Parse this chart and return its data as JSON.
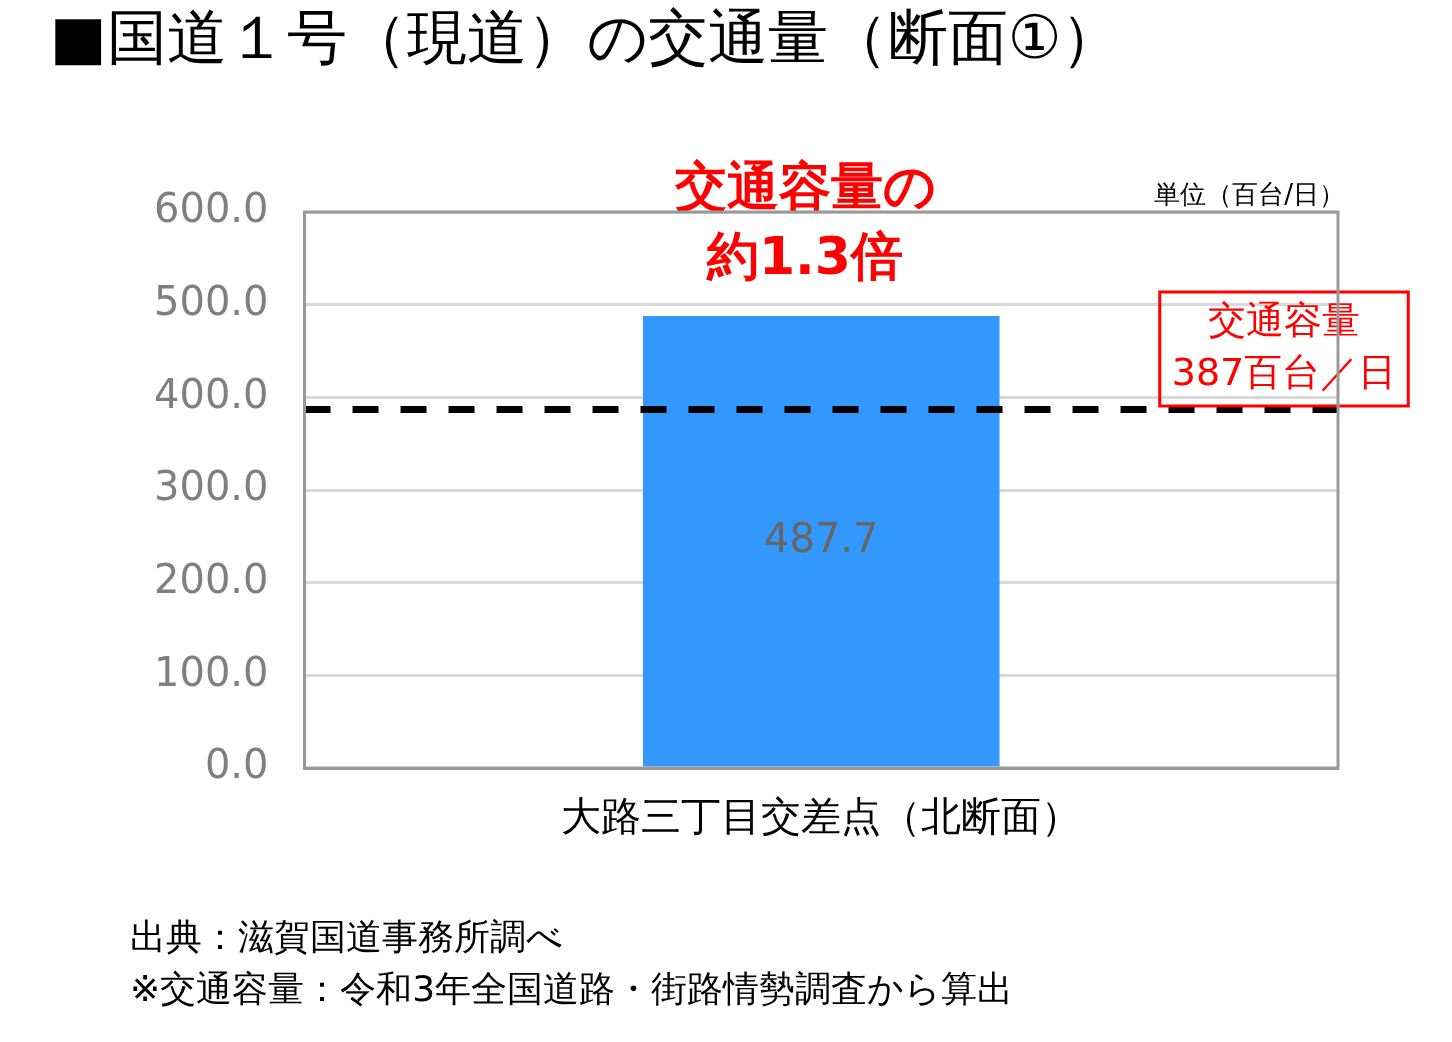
{
  "chart_data": {
    "type": "bar",
    "title": "■国道１号（現道）の交通量（断面①）",
    "categories": [
      "大路三丁目交差点（北断面）"
    ],
    "values": [
      487.7
    ],
    "color": "#3399ff",
    "data_labels": true,
    "ylim": [
      0,
      600
    ],
    "yticks": [
      {
        "value": 0,
        "label": "0.0"
      },
      {
        "value": 100,
        "label": "100.0"
      },
      {
        "value": 200,
        "label": "200.0"
      },
      {
        "value": 300,
        "label": "300.0"
      },
      {
        "value": 400,
        "label": "400.0"
      },
      {
        "value": 500,
        "label": "500.0"
      },
      {
        "value": 600,
        "label": "600.0"
      }
    ],
    "grid": "y",
    "legend": false,
    "ref_lines": [
      {
        "axis": "y",
        "value": 387,
        "label": "交通容量\n387百台／日",
        "color": "#000000",
        "line_style": "dashed"
      }
    ],
    "annotations": [
      "交通容量の",
      "約1.3倍",
      "単位（百台/日）",
      "出典：滋賀国道事務所調べ",
      "※交通容量：令和3年全国道路・街路情勢調査から算出"
    ]
  }
}
